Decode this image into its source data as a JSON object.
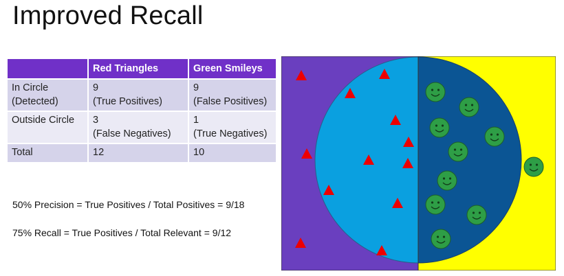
{
  "title": "Improved Recall",
  "table": {
    "headers": [
      "",
      "Red Triangles",
      "Green Smileys"
    ],
    "rows": [
      {
        "label": [
          "In Circle",
          "(Detected)"
        ],
        "red": [
          "9",
          "(True Positives)"
        ],
        "green": [
          "9",
          "(False Positives)"
        ]
      },
      {
        "label": [
          "Outside Circle",
          ""
        ],
        "red": [
          "3",
          "(False Negatives)"
        ],
        "green": [
          "1",
          "(True Negatives)"
        ]
      },
      {
        "label": [
          "Total",
          ""
        ],
        "red": [
          "12",
          ""
        ],
        "green": [
          "10",
          ""
        ]
      }
    ]
  },
  "formulas": {
    "precision": "50% Precision = True Positives / Total Positives = 9/18",
    "recall": "75% Recall = True Positives / Total Relevant = 9/12"
  },
  "colors": {
    "left_background": "#6a3fbf",
    "right_background": "#ffff00",
    "circle_left": "#0aa0e0",
    "circle_right": "#0b5594",
    "triangle": "#ee0000",
    "smiley": "#2e9e46"
  },
  "items": {
    "red_triangles_inside": 9,
    "red_triangles_outside": 3,
    "green_smileys_inside": 9,
    "green_smileys_outside": 1
  }
}
